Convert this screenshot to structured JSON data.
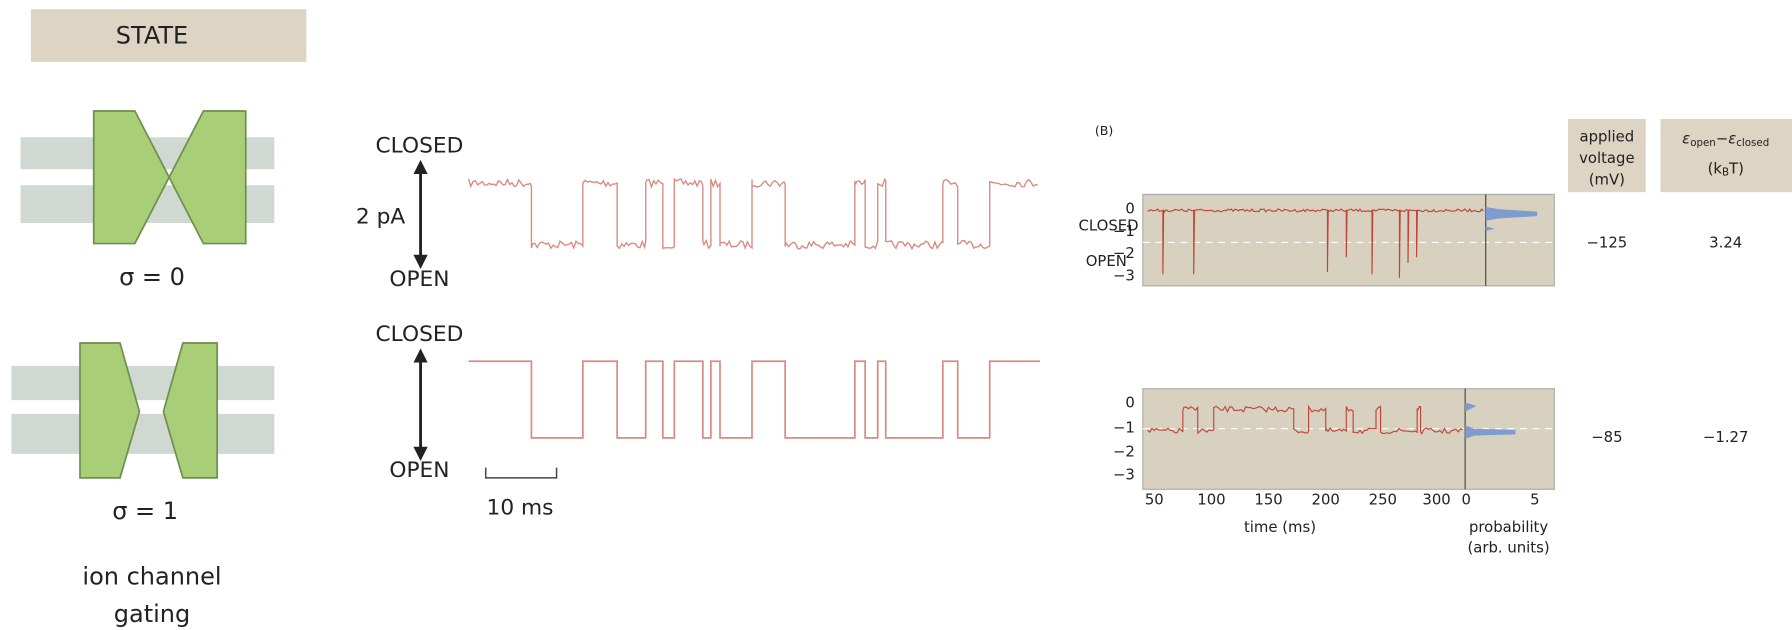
{
  "state_panel": {
    "header": "STATE",
    "states": [
      {
        "label": "σ = 0"
      },
      {
        "label": "σ = 1"
      }
    ],
    "caption": [
      "ion channel",
      "gating"
    ]
  },
  "traces": [
    {
      "closed": "CLOSED",
      "open": "OPEN",
      "scale": "2 pA"
    },
    {
      "closed": "CLOSED",
      "open": "OPEN",
      "scale": "10 ms"
    }
  ],
  "panel_b": {
    "label": "(B)",
    "headers": {
      "voltage": [
        "applied",
        "voltage",
        "(mV)"
      ],
      "energy": {
        "eps1": "ε",
        "sub1": "open",
        "minus": "−",
        "eps2": "ε",
        "sub2": "closed",
        "unit_pre": "(k",
        "unit_sub": "B",
        "unit_post": "T)"
      }
    },
    "rows": [
      {
        "voltage": "−125",
        "energy": "3.24"
      },
      {
        "voltage": "−85",
        "energy": "−1.27"
      }
    ],
    "plots": [
      {
        "state_labels": [
          "CLOSED",
          "OPEN"
        ],
        "yticks": [
          "0",
          "−1",
          "−2",
          "−3"
        ]
      },
      {
        "yticks": [
          "0",
          "−1",
          "−2",
          "−3"
        ],
        "xticks": [
          "50",
          "100",
          "150",
          "200",
          "250",
          "300"
        ],
        "hist_ticks": [
          "0",
          "5"
        ],
        "xlabel": "time (ms)",
        "hist_label": [
          "probability",
          "(arb. units)"
        ]
      }
    ]
  }
}
